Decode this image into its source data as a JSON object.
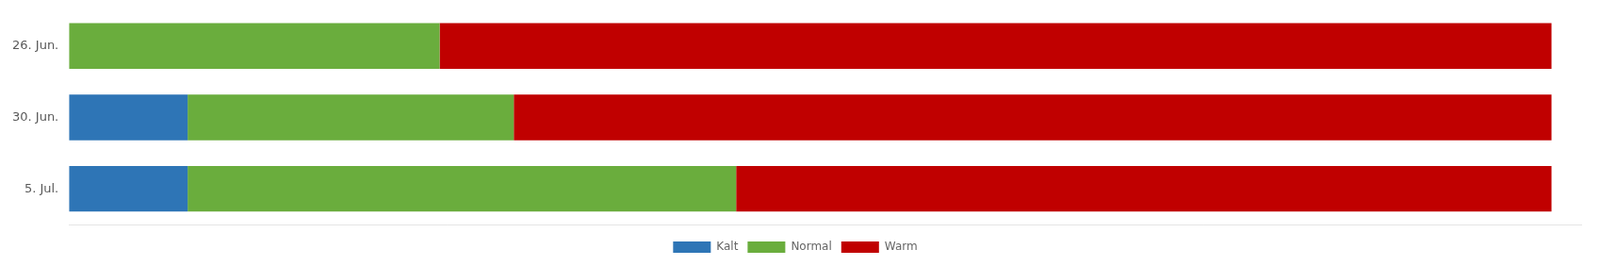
{
  "chart_data": {
    "type": "bar",
    "orientation": "horizontal",
    "stacked": true,
    "categories": [
      "26. Jun.",
      "30. Jun.",
      "5. Jul."
    ],
    "series": [
      {
        "name": "Kalt",
        "color": "#2E75B6",
        "values": [
          0,
          0.08,
          0.08
        ]
      },
      {
        "name": "Normal",
        "color": "#6AAD3D",
        "values": [
          0.25,
          0.22,
          0.37
        ]
      },
      {
        "name": "Warm",
        "color": "#C00000",
        "values": [
          0.75,
          0.7,
          0.55
        ]
      }
    ],
    "xlim": [
      0,
      1.02
    ],
    "tick_labels": "y",
    "grid": false,
    "legend": "bottom"
  }
}
